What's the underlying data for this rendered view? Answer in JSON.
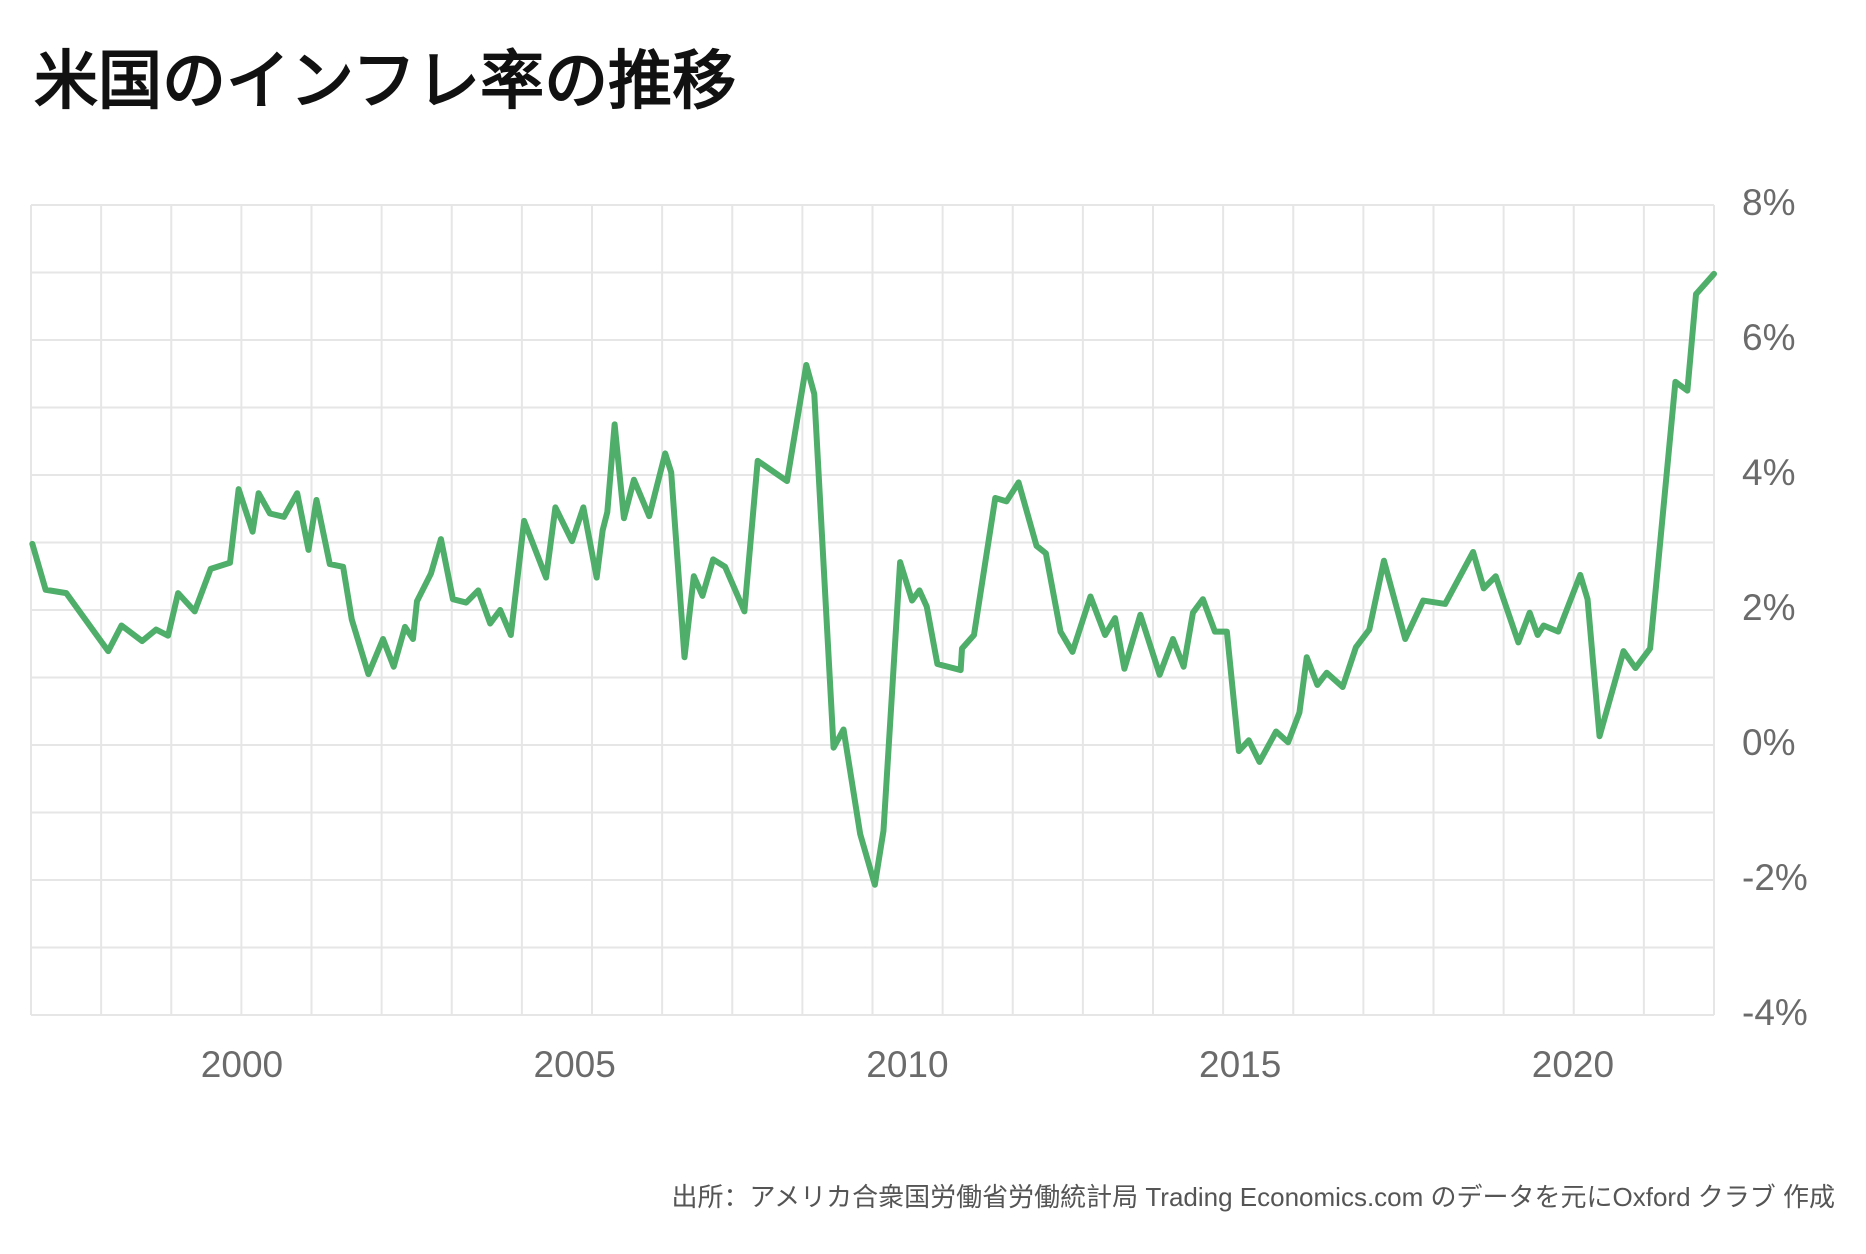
{
  "chart_data": {
    "type": "line",
    "title": "米国のインフレ率の推移",
    "source": "出所：アメリカ合衆国労働省労働統計局 Trading Economics.com のデータを元にOxford クラブ 作成",
    "xlim": [
      1996.83,
      2022.12
    ],
    "xticks": [
      2000,
      2005,
      2010,
      2015,
      2020
    ],
    "ylim": [
      -4,
      8
    ],
    "yticks": [
      {
        "value": -4,
        "label": "-4%"
      },
      {
        "value": -2,
        "label": "-2%"
      },
      {
        "value": 0,
        "label": "0%"
      },
      {
        "value": 2,
        "label": "2%"
      },
      {
        "value": 4,
        "label": "4%"
      },
      {
        "value": 6,
        "label": "6%"
      },
      {
        "value": 8,
        "label": "8%"
      }
    ],
    "grid": true,
    "series": [
      {
        "color": "#4fae6a",
        "x": [
          1996.85,
          1997.05,
          1997.36,
          1997.99,
          1998.19,
          1998.5,
          1998.71,
          1998.89,
          1999.04,
          1999.29,
          1999.53,
          1999.82,
          1999.95,
          2000.16,
          2000.25,
          2000.42,
          2000.63,
          2000.83,
          2001.0,
          2001.12,
          2001.32,
          2001.52,
          2001.65,
          2001.9,
          2002.12,
          2002.28,
          2002.45,
          2002.57,
          2002.63,
          2002.84,
          2002.99,
          2003.17,
          2003.37,
          2003.55,
          2003.73,
          2003.88,
          2004.04,
          2004.24,
          2004.57,
          2004.71,
          2004.96,
          2005.13,
          2005.33,
          2005.42,
          2005.49,
          2005.6,
          2005.74,
          2005.89,
          2006.12,
          2006.36,
          2006.45,
          2006.65,
          2006.79,
          2006.92,
          2007.08,
          2007.26,
          2007.55,
          2007.75,
          2008.19,
          2008.48,
          2008.6,
          2008.89,
          2009.04,
          2009.29,
          2009.51,
          2009.64,
          2009.89,
          2010.07,
          2010.18,
          2010.29,
          2010.45,
          2010.8,
          2010.82,
          2011.0,
          2011.32,
          2011.49,
          2011.67,
          2011.94,
          2012.08,
          2012.3,
          2012.48,
          2012.75,
          2012.97,
          2013.12,
          2013.26,
          2013.5,
          2013.79,
          2013.99,
          2014.15,
          2014.29,
          2014.44,
          2014.62,
          2014.8,
          2014.98,
          2015.13,
          2015.29,
          2015.54,
          2015.72,
          2015.89,
          2016.0,
          2016.16,
          2016.3,
          2016.54,
          2016.74,
          2016.94,
          2017.16,
          2017.48,
          2017.75,
          2018.08,
          2018.5,
          2018.66,
          2018.84,
          2019.18,
          2019.35,
          2019.47,
          2019.56,
          2019.78,
          2020.11,
          2020.22,
          2020.4,
          2020.76,
          2020.94,
          2021.16,
          2021.54,
          2021.72,
          2021.85,
          2022.12
        ],
        "values": [
          2.98,
          2.3,
          2.25,
          1.39,
          1.77,
          1.54,
          1.71,
          1.62,
          2.25,
          1.98,
          2.61,
          2.7,
          3.79,
          3.16,
          3.73,
          3.43,
          3.38,
          3.73,
          2.89,
          3.63,
          2.68,
          2.64,
          1.86,
          1.05,
          1.57,
          1.16,
          1.75,
          1.57,
          2.13,
          2.54,
          3.05,
          2.16,
          2.11,
          2.29,
          1.8,
          2.0,
          1.63,
          3.32,
          2.48,
          3.52,
          3.02,
          3.52,
          2.48,
          3.18,
          3.45,
          4.75,
          3.36,
          3.93,
          3.39,
          4.32,
          4.04,
          1.3,
          2.5,
          2.21,
          2.75,
          2.64,
          1.98,
          4.21,
          3.91,
          5.63,
          5.2,
          -0.04,
          0.23,
          -1.32,
          -2.07,
          -1.27,
          2.71,
          2.14,
          2.29,
          2.05,
          1.2,
          1.11,
          1.43,
          1.63,
          3.66,
          3.61,
          3.89,
          2.95,
          2.84,
          1.68,
          1.38,
          2.2,
          1.63,
          1.88,
          1.13,
          1.93,
          1.04,
          1.57,
          1.16,
          1.96,
          2.16,
          1.68,
          1.68,
          -0.09,
          0.07,
          -0.25,
          0.2,
          0.04,
          0.48,
          1.3,
          0.89,
          1.07,
          0.86,
          1.45,
          1.71,
          2.73,
          1.57,
          2.14,
          2.09,
          2.86,
          2.32,
          2.5,
          1.52,
          1.96,
          1.63,
          1.77,
          1.68,
          2.52,
          2.16,
          0.13,
          1.39,
          1.14,
          1.43,
          5.38,
          5.25,
          6.68,
          6.98
        ]
      }
    ]
  }
}
